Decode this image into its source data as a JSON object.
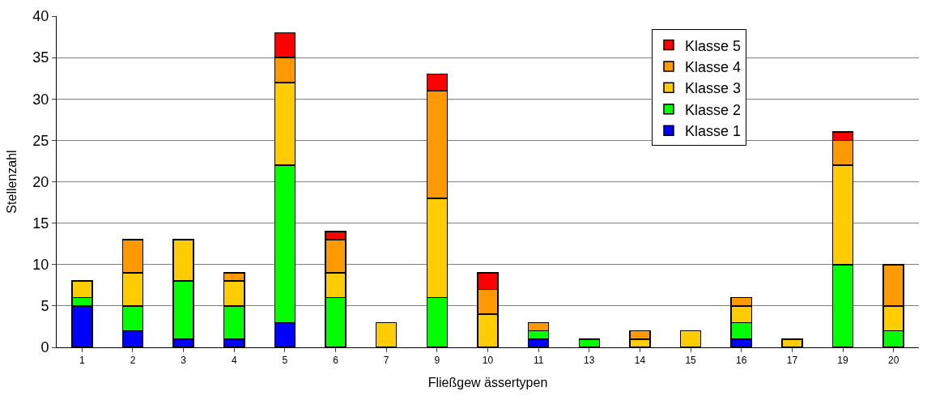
{
  "chart_data": {
    "type": "bar",
    "stacked": true,
    "xlabel": "Fließgew ässertypen",
    "ylabel": "Stellenzahl",
    "categories": [
      "1",
      "2",
      "3",
      "4",
      "5",
      "6",
      "7",
      "9",
      "10",
      "11",
      "13",
      "14",
      "15",
      "16",
      "17",
      "19",
      "20"
    ],
    "series": [
      {
        "name": "Klasse 1",
        "color": "#0000ff",
        "values": [
          5,
          2,
          1,
          1,
          3,
          null,
          null,
          null,
          null,
          1,
          null,
          null,
          null,
          1,
          null,
          null,
          null
        ]
      },
      {
        "name": "Klasse 2",
        "color": "#00ff00",
        "values": [
          1,
          3,
          7,
          4,
          19,
          6,
          null,
          6,
          null,
          1,
          1,
          null,
          null,
          2,
          null,
          10,
          2
        ]
      },
      {
        "name": "Klasse 3",
        "color": "#ffcc00",
        "values": [
          2,
          4,
          5,
          3,
          10,
          3,
          3,
          12,
          4,
          null,
          null,
          1,
          2,
          2,
          1,
          12,
          3
        ]
      },
      {
        "name": "Klasse 4",
        "color": "#ff9900",
        "values": [
          null,
          4,
          null,
          1,
          3,
          4,
          null,
          13,
          3,
          1,
          null,
          1,
          null,
          1,
          null,
          3,
          5
        ]
      },
      {
        "name": "Klasse 5",
        "color": "#ff0000",
        "values": [
          null,
          null,
          null,
          null,
          3,
          1,
          null,
          2,
          2,
          null,
          null,
          null,
          null,
          null,
          null,
          1,
          null
        ]
      }
    ],
    "ylim": [
      0,
      40
    ],
    "yticks": [
      0,
      5,
      10,
      15,
      20,
      25,
      30,
      35,
      40
    ],
    "grid": "y",
    "legend": "top right"
  }
}
